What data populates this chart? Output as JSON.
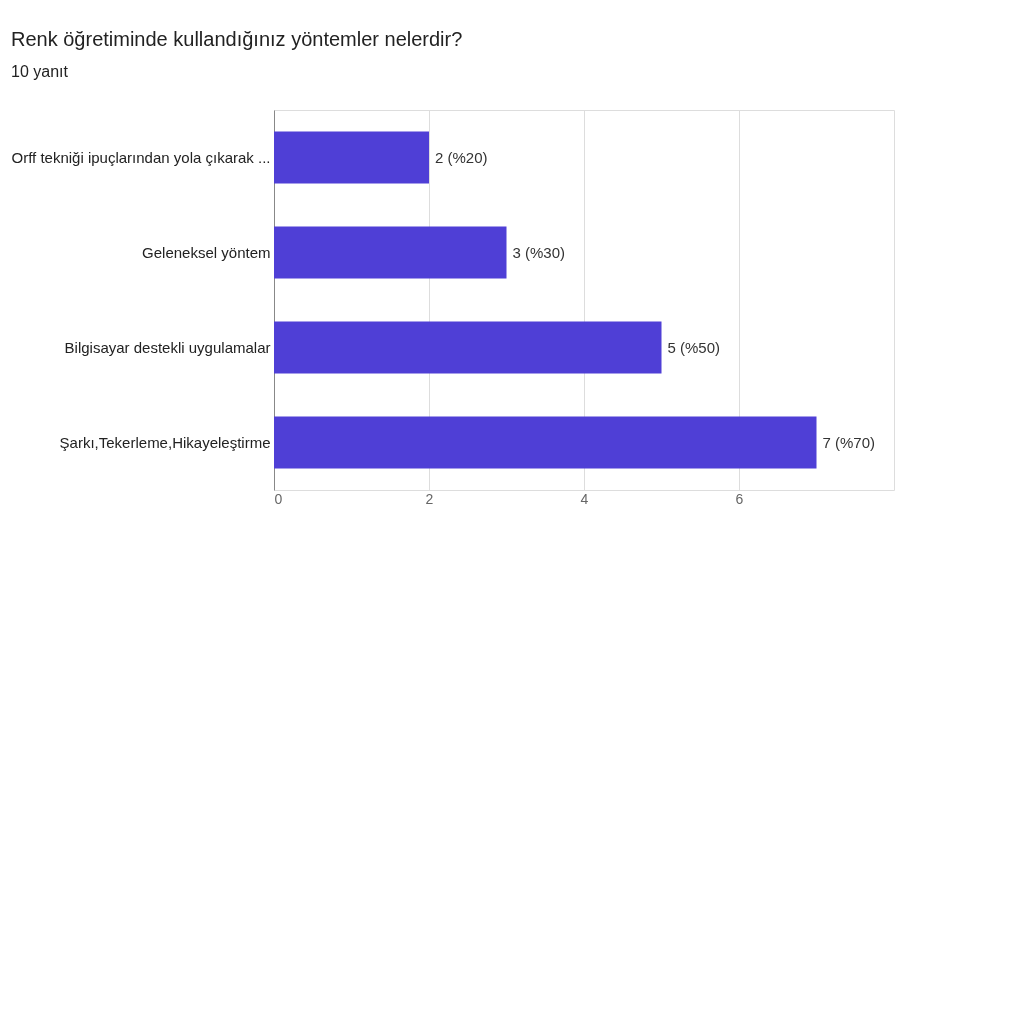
{
  "chart_data": {
    "type": "bar",
    "orientation": "horizontal",
    "title": "Renk öğretiminde kullandığınız yöntemler nelerdir?",
    "subtitle": "10 yanıt",
    "categories": [
      "Orff tekniği ipuçlarından yola çıkarak ...",
      "Geleneksel yöntem",
      "Bilgisayar destekli uygulamalar",
      "Şarkı,Tekerleme,Hikayeleştirme"
    ],
    "values": [
      2,
      3,
      5,
      7
    ],
    "value_labels": [
      "2 (%20)",
      "3 (%30)",
      "5 (%50)",
      "7 (%70)"
    ],
    "color": "#4f3fd6",
    "xlim": [
      0,
      8
    ],
    "xticks": [
      0,
      2,
      4,
      6
    ],
    "grid": "x"
  }
}
